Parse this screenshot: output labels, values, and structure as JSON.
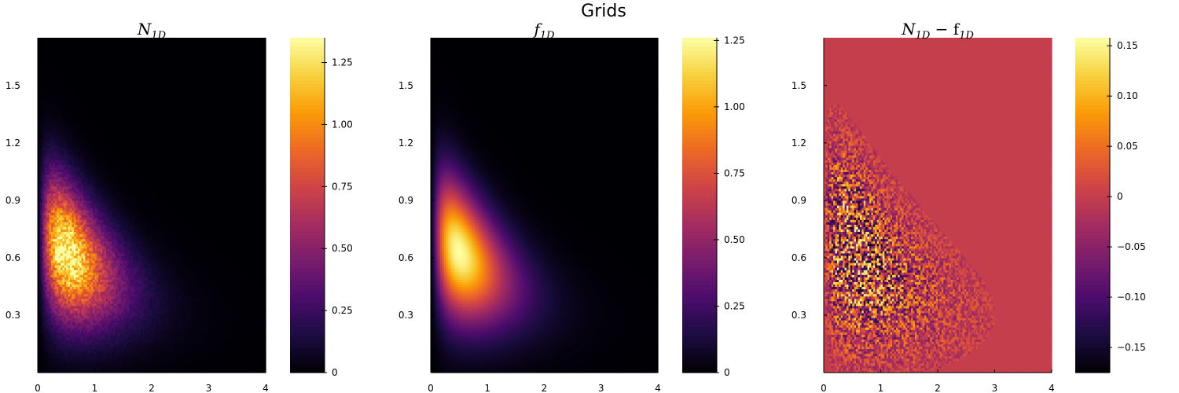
{
  "figure_title": "Grids",
  "colormap": "inferno",
  "colormap_stops": [
    "#000004",
    "#1b0c41",
    "#4a0c6b",
    "#781c6d",
    "#a52c60",
    "#cf4446",
    "#ed6925",
    "#fb9b06",
    "#f7d13d",
    "#fcffa4"
  ],
  "chart_data": [
    {
      "type": "heatmap",
      "title_base": "N",
      "title_sub": "1D",
      "xlim": [
        0,
        4
      ],
      "ylim": [
        0,
        1.75
      ],
      "xticks": [
        "0",
        "1",
        "2",
        "3",
        "4"
      ],
      "yticks": [
        "0.3",
        "0.6",
        "0.9",
        "1.2",
        "1.5"
      ],
      "colorbar_ticks": [
        "0",
        "0.25",
        "0.50",
        "0.75",
        "1.00",
        "1.25"
      ],
      "clim": [
        0,
        1.35
      ],
      "peak": {
        "x": 0.5,
        "y": 0.78,
        "value": 1.35
      },
      "noisy": true
    },
    {
      "type": "heatmap",
      "title_base": "f",
      "title_sub": "1D",
      "xlim": [
        0,
        4
      ],
      "ylim": [
        0,
        1.75
      ],
      "xticks": [
        "0",
        "1",
        "2",
        "3",
        "4"
      ],
      "yticks": [
        "0.3",
        "0.6",
        "0.9",
        "1.2",
        "1.5"
      ],
      "colorbar_ticks": [
        "0",
        "0.25",
        "0.50",
        "0.75",
        "1.00",
        "1.25"
      ],
      "clim": [
        0,
        1.26
      ],
      "peak": {
        "x": 0.5,
        "y": 0.78,
        "value": 1.26
      },
      "noisy": false
    },
    {
      "type": "heatmap",
      "title_base": "N",
      "title_sub": "1D",
      "title_tail": " − f",
      "title_tail_sub": "1D",
      "xlim": [
        0,
        4
      ],
      "ylim": [
        0,
        1.75
      ],
      "xticks": [
        "0",
        "1",
        "2",
        "3",
        "4"
      ],
      "yticks": [
        "0.3",
        "0.6",
        "0.9",
        "1.2",
        "1.5"
      ],
      "colorbar_ticks": [
        "0.15",
        "0.10",
        "0.05",
        "0",
        "−0.05",
        "−0.10",
        "−0.15"
      ],
      "clim": [
        -0.175,
        0.158
      ],
      "background_value": 0,
      "residual": true
    }
  ]
}
